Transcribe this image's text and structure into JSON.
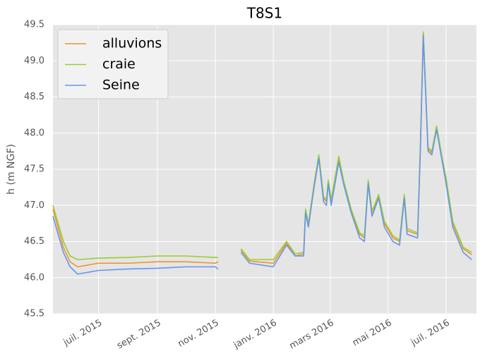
{
  "chart_data": {
    "type": "line",
    "title": "T8S1",
    "ylabel": "h (m NGF)",
    "x": [
      "2015-05-14",
      "2015-05-25",
      "2015-06-01",
      "2015-06-09",
      "2015-07-01",
      "2015-08-01",
      "2015-09-01",
      "2015-10-01",
      "2015-11-01",
      "2015-11-04",
      "2015-11-15",
      "2015-11-28",
      "2015-12-07",
      "2016-01-01",
      "2016-01-15",
      "2016-01-24",
      "2016-02-02",
      "2016-02-04",
      "2016-02-07",
      "2016-02-13",
      "2016-02-18",
      "2016-02-23",
      "2016-02-26",
      "2016-02-28",
      "2016-03-02",
      "2016-03-10",
      "2016-03-15",
      "2016-03-23",
      "2016-04-01",
      "2016-04-06",
      "2016-04-10",
      "2016-04-14",
      "2016-04-21",
      "2016-04-27",
      "2016-05-06",
      "2016-05-13",
      "2016-05-18",
      "2016-05-21",
      "2016-06-01",
      "2016-06-04",
      "2016-06-07",
      "2016-06-12",
      "2016-06-16",
      "2016-06-21",
      "2016-06-27",
      "2016-07-01",
      "2016-07-08",
      "2016-07-19",
      "2016-07-28"
    ],
    "series": [
      {
        "name": "alluvions",
        "color": "#f0922c",
        "values": [
          46.95,
          46.42,
          46.22,
          46.15,
          46.2,
          46.2,
          46.22,
          46.22,
          46.2,
          46.22,
          null,
          46.38,
          46.23,
          46.2,
          46.48,
          46.3,
          46.33,
          46.93,
          46.72,
          47.28,
          47.68,
          47.1,
          47.05,
          47.33,
          47.05,
          47.65,
          47.33,
          46.93,
          46.6,
          46.55,
          47.33,
          46.9,
          47.13,
          46.75,
          46.55,
          46.5,
          47.13,
          46.65,
          46.6,
          47.83,
          49.38,
          47.78,
          47.73,
          48.08,
          47.63,
          47.35,
          46.75,
          46.4,
          46.32
        ]
      },
      {
        "name": "craie",
        "color": "#9acd32",
        "values": [
          47.0,
          46.5,
          46.3,
          46.25,
          46.27,
          46.28,
          46.3,
          46.3,
          46.28,
          46.28,
          null,
          46.4,
          46.25,
          46.25,
          46.5,
          46.33,
          46.35,
          46.95,
          46.75,
          47.3,
          47.7,
          47.12,
          47.08,
          47.35,
          47.08,
          47.68,
          47.35,
          46.95,
          46.62,
          46.58,
          47.35,
          46.92,
          47.15,
          46.78,
          46.58,
          46.52,
          47.15,
          46.68,
          46.62,
          47.85,
          49.4,
          47.8,
          47.75,
          48.1,
          47.65,
          47.38,
          46.78,
          46.42,
          46.35
        ]
      },
      {
        "name": "Seine",
        "color": "#6495ed",
        "values": [
          46.85,
          46.35,
          46.15,
          46.05,
          46.1,
          46.12,
          46.13,
          46.15,
          46.15,
          46.12,
          null,
          46.35,
          46.2,
          46.15,
          46.45,
          46.3,
          46.3,
          46.9,
          46.7,
          47.25,
          47.65,
          47.05,
          47.0,
          47.3,
          47.0,
          47.6,
          47.3,
          46.9,
          46.55,
          46.5,
          47.3,
          46.85,
          47.1,
          46.7,
          46.5,
          46.45,
          47.1,
          46.6,
          46.55,
          47.8,
          49.35,
          47.75,
          47.7,
          48.05,
          47.6,
          47.3,
          46.7,
          46.35,
          46.25
        ]
      }
    ],
    "xlim": [
      "2015-05-14",
      "2016-08-02"
    ],
    "xticks": [
      {
        "value": "2015-07",
        "label": "juil. 2015"
      },
      {
        "value": "2015-09",
        "label": "sept. 2015"
      },
      {
        "value": "2015-11",
        "label": "nov. 2015"
      },
      {
        "value": "2016-01",
        "label": "janv. 2016"
      },
      {
        "value": "2016-03",
        "label": "mars 2016"
      },
      {
        "value": "2016-05",
        "label": "mai 2016"
      },
      {
        "value": "2016-07",
        "label": "juil. 2016"
      }
    ],
    "ylim": [
      45.5,
      49.5
    ],
    "yticks": [
      45.5,
      {
        "value": 46,
        "label": "46.0"
      },
      46.5,
      {
        "value": 47,
        "label": "47.0"
      },
      47.5,
      {
        "value": 48,
        "label": "48.0"
      },
      48.5,
      {
        "value": 49,
        "label": "49.0"
      },
      49.5
    ],
    "grid": true,
    "legend": "upper left"
  }
}
